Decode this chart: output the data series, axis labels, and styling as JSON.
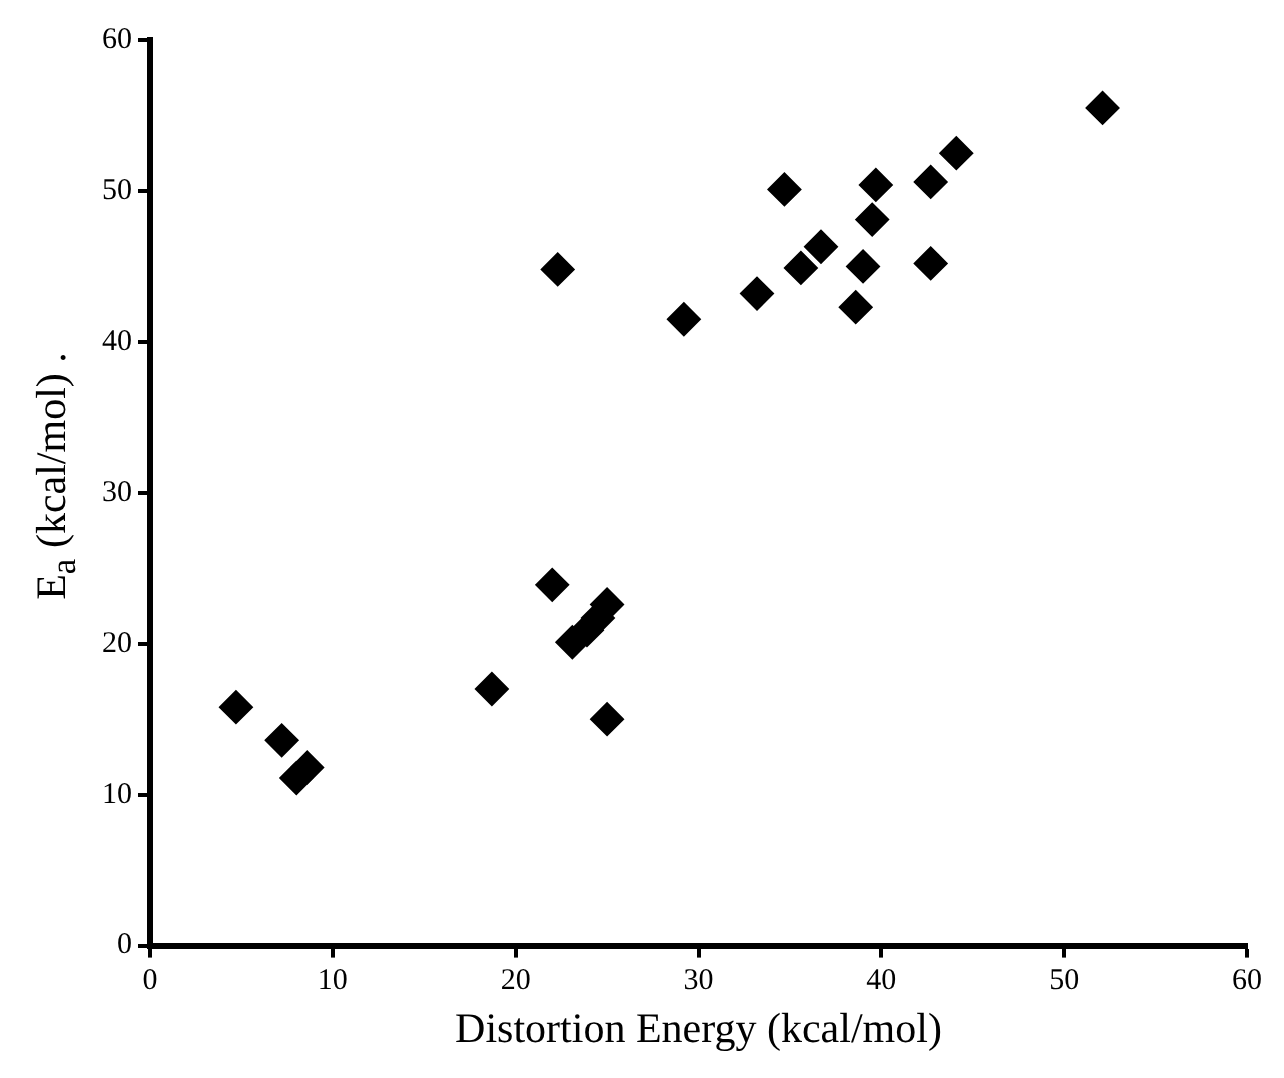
{
  "chart_data": {
    "type": "scatter",
    "xlabel": "Distortion Energy (kcal/mol)",
    "ylabel": "E$_{a}$ (kcal/mol)  .",
    "marker": "diamond",
    "grid": false,
    "legend": false,
    "xlim": [
      0,
      60
    ],
    "xticks": [
      0,
      10,
      20,
      30,
      40,
      50,
      60
    ],
    "ylim": [
      0,
      60
    ],
    "yticks": [
      0,
      10,
      20,
      30,
      40,
      50,
      60
    ],
    "series": [
      {
        "color": "#000000",
        "x": [
          4.7,
          7.2,
          8.0,
          8.6,
          18.7,
          22.0,
          25.0,
          23.1,
          23.9,
          24.5,
          25.0,
          22.3,
          29.2,
          33.2,
          34.7,
          35.6,
          36.7,
          38.6,
          39.0,
          39.5,
          39.7,
          42.7,
          42.7,
          44.1,
          52.1
        ],
        "values": [
          15.8,
          13.6,
          11.1,
          11.8,
          17.0,
          23.9,
          22.6,
          20.1,
          20.9,
          21.7,
          15.0,
          44.8,
          41.5,
          43.2,
          50.1,
          44.9,
          46.3,
          42.3,
          45.0,
          48.1,
          50.4,
          50.6,
          45.2,
          52.5,
          55.5
        ]
      }
    ]
  }
}
